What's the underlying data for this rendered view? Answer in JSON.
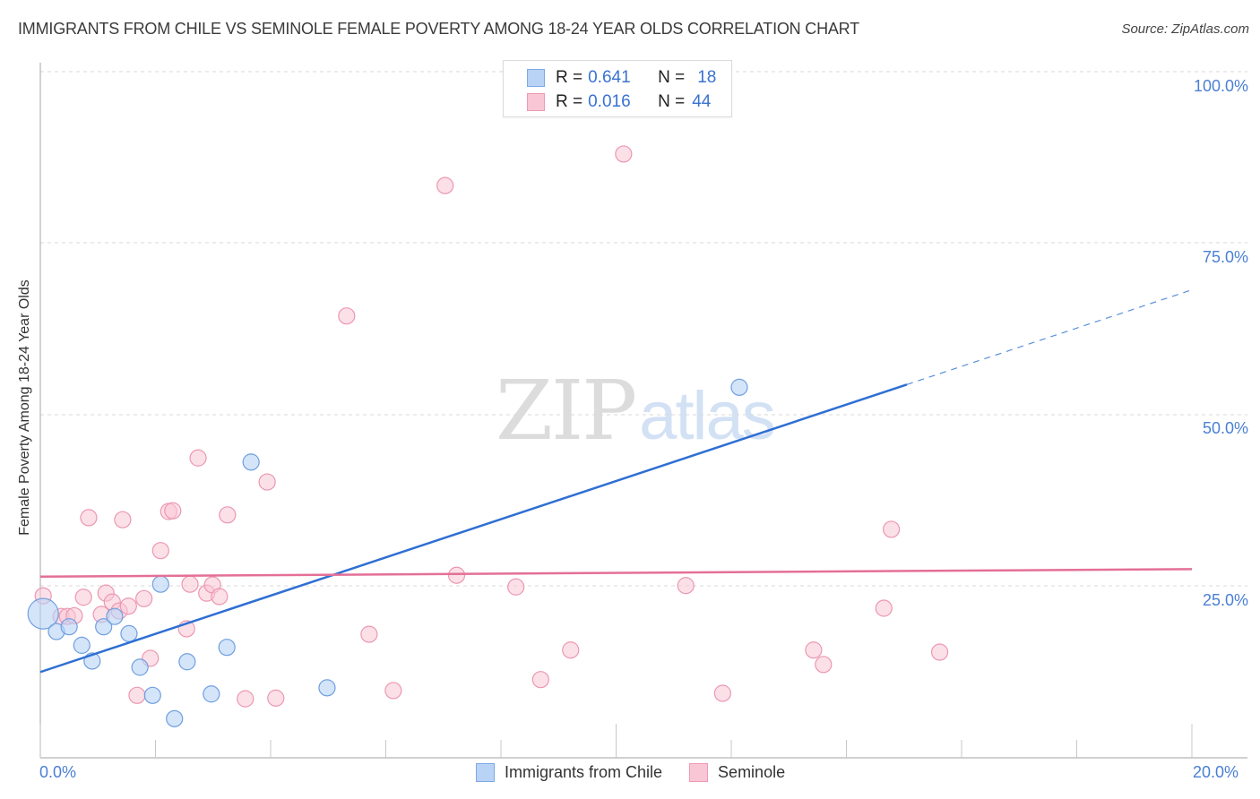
{
  "header": {
    "title": "IMMIGRANTS FROM CHILE VS SEMINOLE FEMALE POVERTY AMONG 18-24 YEAR OLDS CORRELATION CHART",
    "source": "Source: ZipAtlas.com"
  },
  "watermark": {
    "zip": "ZIP",
    "atlas": "atlas"
  },
  "legend": {
    "rows": [
      {
        "swatch_color": "#b8d3f5",
        "swatch_border": "#7ea9e6",
        "r_label": "R =",
        "r_value": "0.641",
        "n_label": "N =",
        "n_value": "18"
      },
      {
        "swatch_color": "#f9c6d5",
        "swatch_border": "#ee9ab4",
        "r_label": "R =",
        "r_value": "0.016",
        "n_label": "N =",
        "n_value": "44"
      }
    ]
  },
  "bottom_legend": {
    "items": [
      {
        "label": "Immigrants from Chile",
        "swatch_color": "#b8d3f5",
        "swatch_border": "#7ea9e6"
      },
      {
        "label": "Seminole",
        "swatch_color": "#f9c6d5",
        "swatch_border": "#ee9ab4"
      }
    ]
  },
  "axes": {
    "ylabel": "Female Poverty Among 18-24 Year Olds",
    "y_ticks": [
      "100.0%",
      "75.0%",
      "50.0%",
      "25.0%"
    ],
    "x_ticks": [
      "0.0%",
      "20.0%"
    ]
  },
  "colors": {
    "blue": "#3a72d0",
    "blue_fill": "#b8d3f5",
    "blue_stroke": "#6f9fe0",
    "pink": "#e46f97",
    "pink_fill": "#f9c6d5",
    "pink_stroke": "#ec97b2",
    "tick_text": "#4a7fd4"
  },
  "chart_data": {
    "type": "scatter",
    "title": "IMMIGRANTS FROM CHILE VS SEMINOLE FEMALE POVERTY AMONG 18-24 YEAR OLDS CORRELATION CHART",
    "xlabel": "",
    "ylabel": "Female Poverty Among 18-24 Year Olds",
    "xlim": [
      0,
      20
    ],
    "ylim": [
      0,
      100
    ],
    "x_tick_labels": [
      "0.0%",
      "20.0%"
    ],
    "y_tick_labels": [
      "25.0%",
      "50.0%",
      "75.0%",
      "100.0%"
    ],
    "grid": "horizontal dashed",
    "legend_position": "top-center and bottom",
    "series": [
      {
        "name": "Immigrants from Chile",
        "R": 0.641,
        "N": 18,
        "color": "#6f9fe0",
        "points": [
          [
            0.05,
            21.0
          ],
          [
            0.28,
            18.4
          ],
          [
            0.5,
            19.1
          ],
          [
            0.72,
            16.4
          ],
          [
            0.9,
            14.1
          ],
          [
            1.1,
            19.1
          ],
          [
            1.29,
            20.6
          ],
          [
            1.54,
            18.1
          ],
          [
            1.73,
            13.2
          ],
          [
            1.95,
            9.1
          ],
          [
            2.09,
            25.3
          ],
          [
            2.33,
            5.7
          ],
          [
            2.55,
            14.0
          ],
          [
            2.97,
            9.3
          ],
          [
            3.24,
            16.1
          ],
          [
            3.66,
            43.1
          ],
          [
            4.98,
            10.2
          ],
          [
            12.14,
            54.0
          ]
        ],
        "trend": {
          "x0": 0,
          "y0": 12.5,
          "x1": 15.05,
          "y1": 54.4,
          "dashed_to_x": 20,
          "dashed_to_y": 68.2
        }
      },
      {
        "name": "Seminole",
        "R": 0.016,
        "N": 44,
        "color": "#ec97b2",
        "points": [
          [
            0.05,
            23.6
          ],
          [
            0.36,
            20.6
          ],
          [
            0.47,
            20.6
          ],
          [
            0.59,
            20.7
          ],
          [
            0.75,
            23.4
          ],
          [
            0.84,
            35.0
          ],
          [
            1.06,
            20.9
          ],
          [
            1.14,
            24.0
          ],
          [
            1.25,
            22.7
          ],
          [
            1.37,
            21.4
          ],
          [
            1.43,
            34.7
          ],
          [
            1.53,
            22.1
          ],
          [
            1.68,
            9.1
          ],
          [
            1.8,
            23.2
          ],
          [
            1.91,
            14.5
          ],
          [
            2.09,
            30.2
          ],
          [
            2.23,
            35.9
          ],
          [
            2.3,
            36.0
          ],
          [
            2.54,
            18.8
          ],
          [
            2.6,
            25.3
          ],
          [
            2.74,
            43.7
          ],
          [
            2.89,
            24.0
          ],
          [
            2.99,
            25.2
          ],
          [
            3.11,
            23.5
          ],
          [
            3.25,
            35.4
          ],
          [
            3.56,
            8.6
          ],
          [
            3.94,
            40.2
          ],
          [
            4.09,
            8.7
          ],
          [
            5.32,
            64.4
          ],
          [
            5.71,
            18.0
          ],
          [
            6.13,
            9.8
          ],
          [
            7.03,
            83.4
          ],
          [
            7.23,
            26.6
          ],
          [
            8.26,
            24.9
          ],
          [
            8.69,
            11.4
          ],
          [
            9.21,
            15.7
          ],
          [
            10.13,
            88.0
          ],
          [
            11.21,
            25.1
          ],
          [
            11.85,
            9.4
          ],
          [
            13.43,
            15.7
          ],
          [
            13.6,
            13.6
          ],
          [
            14.65,
            21.8
          ],
          [
            14.78,
            33.3
          ],
          [
            15.62,
            15.4
          ]
        ],
        "trend": {
          "x0": 0,
          "y0": 26.4,
          "x1": 20,
          "y1": 27.5
        }
      }
    ]
  }
}
